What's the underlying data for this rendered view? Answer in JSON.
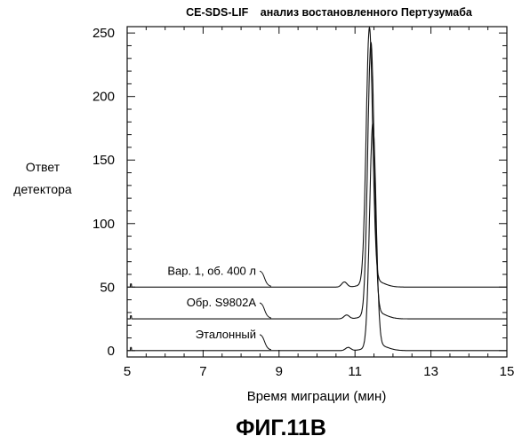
{
  "chart_data": {
    "type": "line",
    "title_bold": "CE-SDS-LIF",
    "title_rest": "анализ востановленного Пертузумаба",
    "xlabel": "Время миграции (мин)",
    "ylabel_line1": "Ответ",
    "ylabel_line2": "детектора",
    "xlim": [
      5,
      15
    ],
    "ylim": [
      -5,
      255
    ],
    "x_ticks": [
      5,
      7,
      9,
      11,
      13,
      15
    ],
    "y_ticks": [
      0,
      50,
      100,
      150,
      200,
      250
    ],
    "grid": false,
    "line_color": "#111111",
    "series": [
      {
        "name": "Вар. 1, об. 400 л",
        "baseline": 50,
        "peak_x": 11.38,
        "peak_height": 200,
        "shoulder_x": 10.72,
        "shoulder_height": 4
      },
      {
        "name": "Обр. S9802A",
        "baseline": 25,
        "peak_x": 11.42,
        "peak_height": 213,
        "shoulder_x": 10.78,
        "shoulder_height": 3
      },
      {
        "name": "Эталонный",
        "baseline": 0,
        "peak_x": 11.47,
        "peak_height": 175,
        "shoulder_x": 10.82,
        "shoulder_height": 2.5
      }
    ]
  },
  "figure_caption": "ФИГ.11В"
}
